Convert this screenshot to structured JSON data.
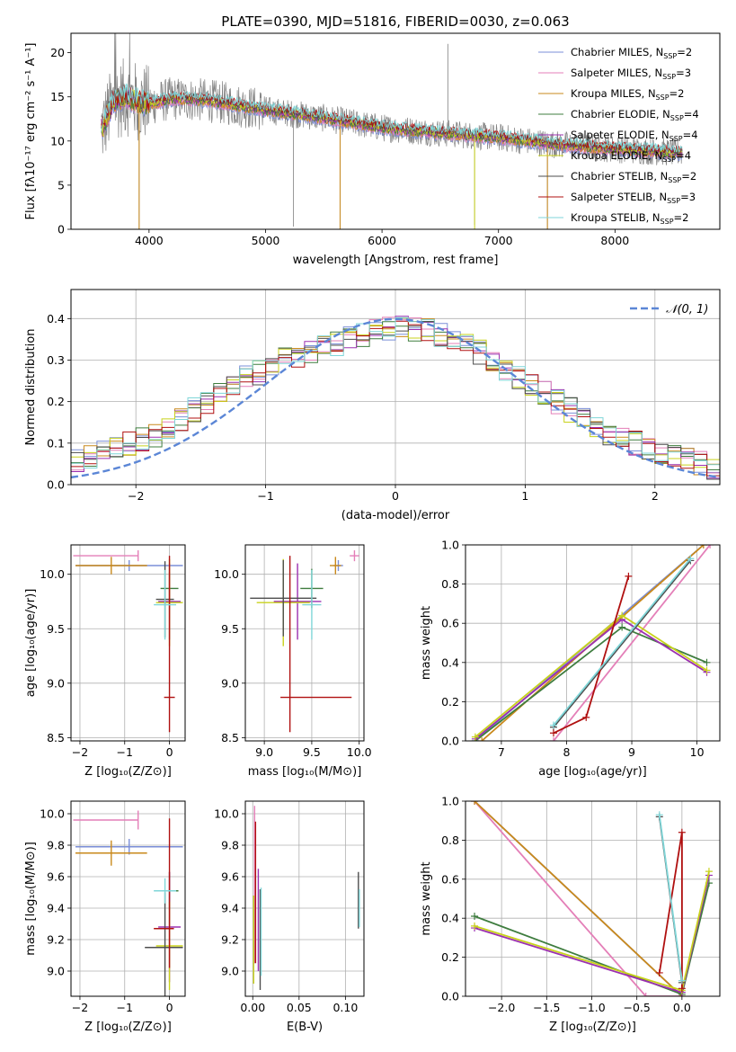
{
  "figure_title": "PLATE=0390, MJD=51816, FIBERID=0030, z=0.063",
  "colors": {
    "Chabrier MILES": "#7b8fd8",
    "Salpeter MILES": "#e47fb8",
    "Kroupa MILES": "#c9891b",
    "Chabrier ELODIE": "#3f7d3f",
    "Salpeter ELODIE": "#9b30b0",
    "Kroupa ELODIE": "#c8d21c",
    "Chabrier STELIB": "#4d4d4d",
    "Salpeter STELIB": "#b01010",
    "Kroupa STELIB": "#7fd6d8",
    "data": "#808080",
    "normal": "#5b86d6"
  },
  "chart_data": [
    {
      "type": "line",
      "panel": "spectrum",
      "title": "PLATE=0390, MJD=51816, FIBERID=0030, z=0.063",
      "xlabel": "wavelength [Angstrom, rest frame]",
      "ylabel": "Flux [fλ10⁻¹⁷ erg cm⁻² s⁻¹ A⁻¹]",
      "xlim": [
        3330,
        8900
      ],
      "ylim": [
        0,
        22.2
      ],
      "xticks": [
        4000,
        5000,
        6000,
        7000,
        8000
      ],
      "yticks": [
        0,
        5,
        10,
        15,
        20
      ],
      "grid": false,
      "legend_position": "top-right",
      "legend": [
        {
          "name": "Chabrier MILES",
          "nssp": "2"
        },
        {
          "name": "Salpeter MILES",
          "nssp": "3"
        },
        {
          "name": "Kroupa MILES",
          "nssp": "2"
        },
        {
          "name": "Chabrier ELODIE",
          "nssp": "4"
        },
        {
          "name": "Salpeter ELODIE",
          "nssp": "4"
        },
        {
          "name": "Kroupa ELODIE",
          "nssp": "4"
        },
        {
          "name": "Chabrier STELIB",
          "nssp": "2"
        },
        {
          "name": "Salpeter STELIB",
          "nssp": "3"
        },
        {
          "name": "Kroupa STELIB",
          "nssp": "2"
        }
      ],
      "model_continuum": {
        "x": [
          3600,
          3700,
          3800,
          3900,
          4000,
          4200,
          4500,
          5000,
          5500,
          6000,
          6500,
          7000,
          7500,
          8000,
          8500
        ],
        "y": [
          11.5,
          14.5,
          15.0,
          14.5,
          14.2,
          14.8,
          14.6,
          13.5,
          12.6,
          11.5,
          10.9,
          10.4,
          9.6,
          9.1,
          8.7
        ]
      },
      "data_spikes": [
        {
          "x": 3915,
          "y": 0.0
        },
        {
          "x": 5240,
          "y": 0.3
        },
        {
          "x": 5640,
          "y": 0.0
        },
        {
          "x": 6565,
          "y": 21.0
        },
        {
          "x": 6795,
          "y": 0.5
        },
        {
          "x": 7420,
          "y": 0.0
        }
      ]
    },
    {
      "type": "step",
      "panel": "residuals",
      "xlabel": "(data-model)/error",
      "ylabel": "Normed distribution",
      "xlim": [
        -2.5,
        2.5
      ],
      "ylim": [
        0,
        0.47
      ],
      "xticks": [
        -2,
        -1,
        0,
        1,
        2
      ],
      "yticks": [
        0.0,
        0.1,
        0.2,
        0.3,
        0.4
      ],
      "grid": true,
      "legend_position": "top-right",
      "legend": [
        "𝒩(0, 1)"
      ],
      "bin_width": 0.1,
      "base_histogram": [
        0.06,
        0.07,
        0.08,
        0.09,
        0.1,
        0.11,
        0.12,
        0.14,
        0.16,
        0.18,
        0.2,
        0.22,
        0.24,
        0.26,
        0.27,
        0.29,
        0.3,
        0.31,
        0.32,
        0.33,
        0.34,
        0.35,
        0.36,
        0.37,
        0.375,
        0.38,
        0.375,
        0.37,
        0.36,
        0.35,
        0.34,
        0.32,
        0.3,
        0.28,
        0.26,
        0.24,
        0.22,
        0.2,
        0.18,
        0.16,
        0.14,
        0.12,
        0.11,
        0.1,
        0.09,
        0.08,
        0.07,
        0.06,
        0.05,
        0.04
      ]
    },
    {
      "type": "errorbar",
      "panel": "age_vs_Z",
      "xlabel": "Z [log₁₀(Z/Z⊙)]",
      "ylabel": "age  [log₁₀(age/yr)]",
      "xlim": [
        -2.2,
        0.35
      ],
      "ylim": [
        8.47,
        10.27
      ],
      "xticks": [
        -2,
        -1,
        0
      ],
      "yticks": [
        8.5,
        9.0,
        9.5,
        10.0
      ],
      "grid": true,
      "points": [
        {
          "model": "Chabrier MILES",
          "x": -0.9,
          "xerr": [
            1.2,
            1.2
          ],
          "y": 10.08,
          "yerr": [
            0.05,
            0.05
          ]
        },
        {
          "model": "Salpeter MILES",
          "x": -0.7,
          "xerr": [
            1.45,
            0.0
          ],
          "y": 10.17,
          "yerr": [
            0.05,
            0.05
          ]
        },
        {
          "model": "Kroupa MILES",
          "x": -1.3,
          "xerr": [
            0.8,
            0.8
          ],
          "y": 10.08,
          "yerr": [
            0.08,
            0.08
          ]
        },
        {
          "model": "Chabrier ELODIE",
          "x": 0.0,
          "xerr": [
            0.2,
            0.2
          ],
          "y": 9.87,
          "yerr": [
            0.15,
            0.15
          ]
        },
        {
          "model": "Salpeter ELODIE",
          "x": 0.0,
          "xerr": [
            0.25,
            0.25
          ],
          "y": 9.75,
          "yerr": [
            0.35,
            0.35
          ]
        },
        {
          "model": "Kroupa ELODIE",
          "x": 0.0,
          "xerr": [
            0.3,
            0.3
          ],
          "y": 9.74,
          "yerr": [
            0.4,
            0.4
          ]
        },
        {
          "model": "Chabrier STELIB",
          "x": -0.1,
          "xerr": [
            0.2,
            0.2
          ],
          "y": 9.77,
          "yerr": [
            0.35,
            0.35
          ]
        },
        {
          "model": "Salpeter STELIB",
          "x": 0.0,
          "xerr": [
            0.12,
            0.12
          ],
          "y": 8.87,
          "yerr": [
            0.32,
            1.3
          ]
        },
        {
          "model": "Kroupa STELIB",
          "x": -0.1,
          "xerr": [
            0.25,
            0.25
          ],
          "y": 9.72,
          "yerr": [
            0.32,
            0.32
          ]
        }
      ]
    },
    {
      "type": "errorbar",
      "panel": "age_vs_mass",
      "xlabel": "mass [log₁₀(M/M⊙)]",
      "ylabel": "",
      "xlim": [
        8.8,
        10.05
      ],
      "ylim": [
        8.47,
        10.27
      ],
      "xticks": [
        9.0,
        9.5,
        10.0
      ],
      "yticks": [
        8.5,
        9.0,
        9.5,
        10.0
      ],
      "grid": true,
      "points": [
        {
          "model": "Chabrier MILES",
          "x": 9.78,
          "xerr": [
            0.05,
            0.05
          ],
          "y": 10.08,
          "yerr": [
            0.05,
            0.05
          ]
        },
        {
          "model": "Salpeter MILES",
          "x": 9.95,
          "xerr": [
            0.05,
            0.05
          ],
          "y": 10.17,
          "yerr": [
            0.05,
            0.05
          ]
        },
        {
          "model": "Kroupa MILES",
          "x": 9.75,
          "xerr": [
            0.06,
            0.06
          ],
          "y": 10.08,
          "yerr": [
            0.08,
            0.08
          ]
        },
        {
          "model": "Chabrier ELODIE",
          "x": 9.5,
          "xerr": [
            0.12,
            0.12
          ],
          "y": 9.87,
          "yerr": [
            0.18,
            0.18
          ]
        },
        {
          "model": "Salpeter ELODIE",
          "x": 9.35,
          "xerr": [
            0.25,
            0.25
          ],
          "y": 9.75,
          "yerr": [
            0.35,
            0.35
          ]
        },
        {
          "model": "Kroupa ELODIE",
          "x": 9.2,
          "xerr": [
            0.28,
            0.28
          ],
          "y": 9.74,
          "yerr": [
            0.4,
            0.4
          ]
        },
        {
          "model": "Chabrier STELIB",
          "x": 9.2,
          "xerr": [
            0.35,
            0.35
          ],
          "y": 9.78,
          "yerr": [
            0.35,
            0.35
          ]
        },
        {
          "model": "Salpeter STELIB",
          "x": 9.27,
          "xerr": [
            0.1,
            0.65
          ],
          "y": 8.87,
          "yerr": [
            0.32,
            1.3
          ]
        },
        {
          "model": "Kroupa STELIB",
          "x": 9.5,
          "xerr": [
            0.1,
            0.1
          ],
          "y": 9.72,
          "yerr": [
            0.32,
            0.32
          ]
        }
      ]
    },
    {
      "type": "line",
      "panel": "weight_vs_age",
      "xlabel": "age  [log₁₀(age/yr)]",
      "ylabel": "mass weight",
      "xlim": [
        6.45,
        10.35
      ],
      "ylim": [
        0,
        1.0
      ],
      "xticks": [
        7,
        8,
        9,
        10
      ],
      "yticks": [
        0.0,
        0.2,
        0.4,
        0.6,
        0.8,
        1.0
      ],
      "grid": true,
      "series": [
        {
          "model": "Chabrier MILES",
          "x": [
            6.6,
            10.1
          ],
          "y": [
            0.0,
            1.0
          ]
        },
        {
          "model": "Salpeter MILES",
          "x": [
            7.8,
            10.2
          ],
          "y": [
            0.0,
            1.0
          ]
        },
        {
          "model": "Kroupa MILES",
          "x": [
            6.7,
            10.1
          ],
          "y": [
            0.0,
            1.0
          ]
        },
        {
          "model": "Chabrier ELODIE",
          "x": [
            6.6,
            8.85,
            10.15
          ],
          "y": [
            0.0,
            0.58,
            0.4
          ]
        },
        {
          "model": "Salpeter ELODIE",
          "x": [
            6.6,
            8.85,
            10.15
          ],
          "y": [
            0.01,
            0.62,
            0.35
          ]
        },
        {
          "model": "Kroupa ELODIE",
          "x": [
            6.6,
            8.85,
            10.15
          ],
          "y": [
            0.02,
            0.64,
            0.36
          ]
        },
        {
          "model": "Chabrier STELIB",
          "x": [
            7.8,
            9.9
          ],
          "y": [
            0.07,
            0.92
          ]
        },
        {
          "model": "Salpeter STELIB",
          "x": [
            7.8,
            8.3,
            8.95
          ],
          "y": [
            0.04,
            0.12,
            0.84
          ]
        },
        {
          "model": "Kroupa STELIB",
          "x": [
            7.8,
            9.9
          ],
          "y": [
            0.08,
            0.93
          ]
        }
      ]
    },
    {
      "type": "errorbar",
      "panel": "mass_vs_Z",
      "xlabel": "Z [log₁₀(Z/Z⊙)]",
      "ylabel": "mass [log₁₀(M/M⊙)]",
      "xlim": [
        -2.2,
        0.35
      ],
      "ylim": [
        8.84,
        10.08
      ],
      "xticks": [
        -2,
        -1,
        0
      ],
      "yticks": [
        9.0,
        9.2,
        9.4,
        9.6,
        9.8,
        10.0
      ],
      "grid": true,
      "points": [
        {
          "model": "Chabrier MILES",
          "x": -0.9,
          "xerr": [
            1.2,
            1.2
          ],
          "y": 9.79,
          "yerr": [
            0.05,
            0.05
          ]
        },
        {
          "model": "Salpeter MILES",
          "x": -0.7,
          "xerr": [
            1.45,
            0.0
          ],
          "y": 9.96,
          "yerr": [
            0.06,
            0.06
          ]
        },
        {
          "model": "Kroupa MILES",
          "x": -1.3,
          "xerr": [
            0.8,
            0.8
          ],
          "y": 9.75,
          "yerr": [
            0.08,
            0.08
          ]
        },
        {
          "model": "Chabrier ELODIE",
          "x": 0.0,
          "xerr": [
            0.2,
            0.2
          ],
          "y": 9.51,
          "yerr": [
            0.12,
            0.12
          ]
        },
        {
          "model": "Salpeter ELODIE",
          "x": 0.0,
          "xerr": [
            0.25,
            0.25
          ],
          "y": 9.28,
          "yerr": [
            0.35,
            0.35
          ]
        },
        {
          "model": "Kroupa ELODIE",
          "x": 0.0,
          "xerr": [
            0.3,
            0.3
          ],
          "y": 9.16,
          "yerr": [
            0.28,
            0.28
          ]
        },
        {
          "model": "Chabrier STELIB",
          "x": -0.1,
          "xerr": [
            0.45,
            0.4
          ],
          "y": 9.15,
          "yerr": [
            0.35,
            0.35
          ]
        },
        {
          "model": "Salpeter STELIB",
          "x": 0.0,
          "xerr": [
            0.35,
            0.1
          ],
          "y": 9.27,
          "yerr": [
            0.25,
            0.7
          ]
        },
        {
          "model": "Kroupa STELIB",
          "x": -0.1,
          "xerr": [
            0.25,
            0.25
          ],
          "y": 9.51,
          "yerr": [
            0.08,
            0.08
          ]
        }
      ]
    },
    {
      "type": "errorbar",
      "panel": "mass_vs_ebv",
      "xlabel": "E(B-V)",
      "ylabel": "",
      "xlim": [
        -0.008,
        0.12
      ],
      "ylim": [
        8.84,
        10.08
      ],
      "xticks": [
        0.0,
        0.05,
        0.1
      ],
      "yticks": [
        9.0,
        9.2,
        9.4,
        9.6,
        9.8,
        10.0
      ],
      "grid": true,
      "points": [
        {
          "model": "Salpeter MILES",
          "x": 0.002,
          "y": 9.6,
          "yerr": [
            0.55,
            0.45
          ]
        },
        {
          "model": "Kroupa ELODIE",
          "x": 0.001,
          "y": 9.2,
          "yerr": [
            0.28,
            0.28
          ]
        },
        {
          "model": "Salpeter STELIB",
          "x": 0.003,
          "y": 9.45,
          "yerr": [
            0.4,
            0.5
          ]
        },
        {
          "model": "Salpeter ELODIE",
          "x": 0.006,
          "y": 9.3,
          "yerr": [
            0.3,
            0.35
          ]
        },
        {
          "model": "Chabrier STELIB",
          "x": 0.008,
          "y": 9.2,
          "yerr": [
            0.32,
            0.32
          ]
        },
        {
          "model": "Kroupa STELIB",
          "x": 0.009,
          "y": 9.25,
          "yerr": [
            0.28,
            0.28
          ]
        },
        {
          "model": "Chabrier STELIB",
          "x": 0.114,
          "y": 9.45,
          "yerr": [
            0.18,
            0.18
          ]
        },
        {
          "model": "Kroupa STELIB",
          "x": 0.115,
          "y": 9.4,
          "yerr": [
            0.12,
            0.12
          ]
        }
      ]
    },
    {
      "type": "line",
      "panel": "weight_vs_Z",
      "xlabel": "Z [log₁₀(Z/Z⊙)]",
      "ylabel": "mass weight",
      "xlim": [
        -2.4,
        0.42
      ],
      "ylim": [
        0,
        1.0
      ],
      "xticks": [
        -2.0,
        -1.5,
        -1.0,
        -0.5,
        0.0
      ],
      "yticks": [
        0.0,
        0.2,
        0.4,
        0.6,
        0.8,
        1.0
      ],
      "grid": true,
      "series": [
        {
          "model": "Chabrier MILES",
          "x": [
            -2.3,
            0.0
          ],
          "y": [
            1.0,
            0.0
          ]
        },
        {
          "model": "Salpeter MILES",
          "x": [
            -2.3,
            -0.4,
            0.0
          ],
          "y": [
            1.0,
            0.0,
            0.0
          ]
        },
        {
          "model": "Kroupa MILES",
          "x": [
            -2.3,
            0.0
          ],
          "y": [
            1.0,
            0.0
          ]
        },
        {
          "model": "Chabrier ELODIE",
          "x": [
            -2.3,
            0.0,
            0.3
          ],
          "y": [
            0.41,
            0.01,
            0.58
          ]
        },
        {
          "model": "Salpeter ELODIE",
          "x": [
            -2.3,
            0.0,
            0.3
          ],
          "y": [
            0.35,
            0.02,
            0.62
          ]
        },
        {
          "model": "Kroupa ELODIE",
          "x": [
            -2.3,
            0.0,
            0.3
          ],
          "y": [
            0.36,
            0.03,
            0.64
          ]
        },
        {
          "model": "Chabrier STELIB",
          "x": [
            -0.25,
            0.0
          ],
          "y": [
            0.92,
            0.07
          ]
        },
        {
          "model": "Salpeter STELIB",
          "x": [
            -0.25,
            0.0,
            0.0
          ],
          "y": [
            0.12,
            0.84,
            0.04
          ]
        },
        {
          "model": "Kroupa STELIB",
          "x": [
            -0.25,
            0.0
          ],
          "y": [
            0.93,
            0.08
          ]
        }
      ]
    }
  ]
}
